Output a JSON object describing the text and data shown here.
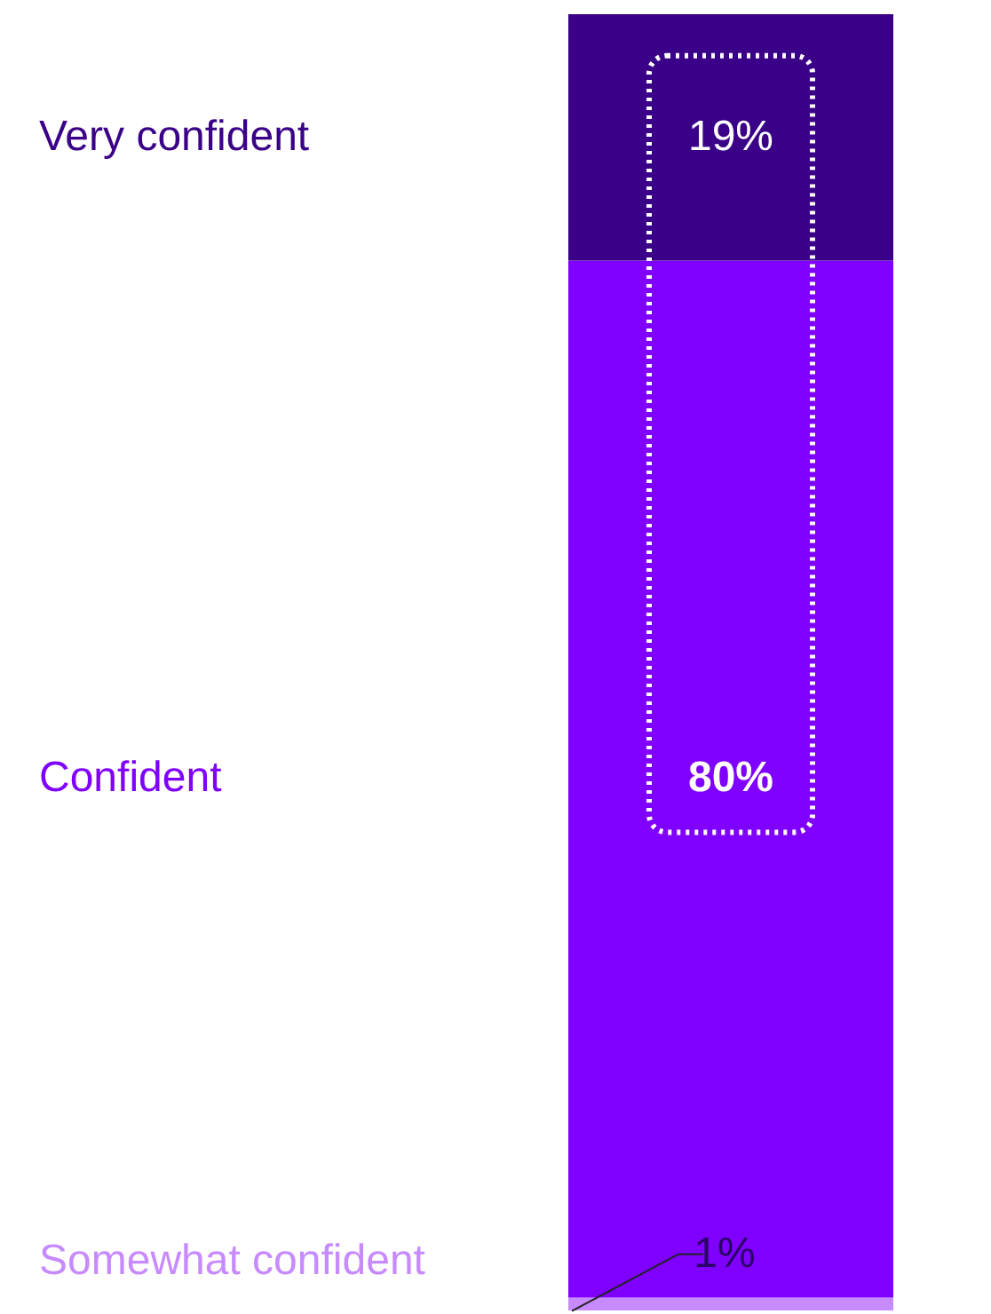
{
  "chart_data": {
    "type": "bar",
    "stacked": true,
    "categories": [
      null
    ],
    "series": [
      {
        "name": "Somewhat confident",
        "color": "#c78bff",
        "values": [
          1
        ],
        "value_labels": [
          "1%"
        ]
      },
      {
        "name": "Confident",
        "color": "#7f00ff",
        "values": [
          80
        ],
        "value_labels": [
          "80%"
        ]
      },
      {
        "name": "Very confident",
        "color": "#3a0088",
        "values": [
          19
        ],
        "value_labels": [
          "19%"
        ]
      }
    ]
  }
}
